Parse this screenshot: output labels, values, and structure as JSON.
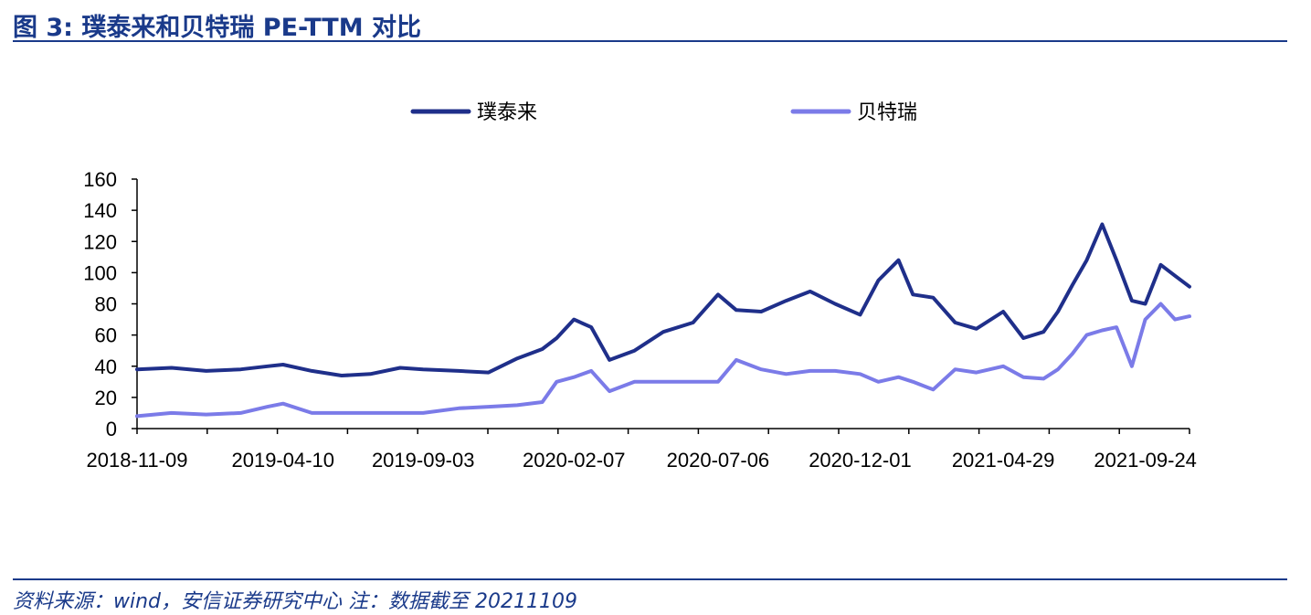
{
  "header": {
    "title": "图 3:  璞泰来和贝特瑞 PE-TTM 对比"
  },
  "footer": {
    "source": "资料来源：wind，安信证券研究中心   注：数据截至 20211109"
  },
  "colors": {
    "series1": "#1f2f8a",
    "series2": "#7b7be8",
    "rule": "#1a3a8a"
  },
  "chart_data": {
    "type": "line",
    "title": "",
    "xlabel": "",
    "ylabel": "",
    "ylim": [
      0,
      160
    ],
    "yticks": [
      "0",
      "20",
      "40",
      "60",
      "80",
      "100",
      "120",
      "140",
      "160"
    ],
    "xticks": [
      "2018-11-09",
      "2019-04-10",
      "2019-09-03",
      "2020-02-07",
      "2020-07-06",
      "2020-12-01",
      "2021-04-29",
      "2021-09-24"
    ],
    "xrange": [
      "2018-11-09",
      "2021-11-09"
    ],
    "grid": false,
    "legend": "top",
    "series": [
      {
        "name": "璞泰来",
        "x": [
          "2018-11-09",
          "2018-12-15",
          "2019-01-20",
          "2019-02-25",
          "2019-03-25",
          "2019-04-10",
          "2019-05-10",
          "2019-06-10",
          "2019-07-10",
          "2019-08-10",
          "2019-09-03",
          "2019-10-10",
          "2019-11-10",
          "2019-12-10",
          "2020-01-05",
          "2020-01-20",
          "2020-02-07",
          "2020-02-25",
          "2020-03-15",
          "2020-04-10",
          "2020-05-10",
          "2020-06-10",
          "2020-07-06",
          "2020-07-25",
          "2020-08-20",
          "2020-09-15",
          "2020-10-10",
          "2020-11-05",
          "2020-12-01",
          "2020-12-20",
          "2021-01-10",
          "2021-01-25",
          "2021-02-15",
          "2021-03-10",
          "2021-04-01",
          "2021-04-29",
          "2021-05-20",
          "2021-06-10",
          "2021-06-25",
          "2021-07-10",
          "2021-07-25",
          "2021-08-10",
          "2021-08-25",
          "2021-09-10",
          "2021-09-24",
          "2021-10-10",
          "2021-10-25",
          "2021-11-09"
        ],
        "y": [
          38,
          39,
          37,
          38,
          40,
          41,
          37,
          34,
          35,
          39,
          38,
          37,
          36,
          45,
          51,
          58,
          70,
          65,
          44,
          50,
          62,
          68,
          86,
          76,
          75,
          82,
          88,
          80,
          73,
          95,
          108,
          86,
          84,
          68,
          64,
          75,
          58,
          62,
          75,
          92,
          108,
          131,
          108,
          82,
          80,
          105,
          98,
          91
        ]
      },
      {
        "name": "贝特瑞",
        "x": [
          "2018-11-09",
          "2018-12-15",
          "2019-01-20",
          "2019-02-25",
          "2019-03-25",
          "2019-04-10",
          "2019-05-10",
          "2019-06-10",
          "2019-07-10",
          "2019-08-10",
          "2019-09-03",
          "2019-10-10",
          "2019-11-10",
          "2019-12-10",
          "2020-01-05",
          "2020-01-20",
          "2020-02-07",
          "2020-02-25",
          "2020-03-15",
          "2020-04-10",
          "2020-05-10",
          "2020-06-10",
          "2020-07-06",
          "2020-07-25",
          "2020-08-20",
          "2020-09-15",
          "2020-10-10",
          "2020-11-05",
          "2020-12-01",
          "2020-12-20",
          "2021-01-10",
          "2021-01-25",
          "2021-02-15",
          "2021-03-10",
          "2021-04-01",
          "2021-04-29",
          "2021-05-20",
          "2021-06-10",
          "2021-06-25",
          "2021-07-10",
          "2021-07-25",
          "2021-08-10",
          "2021-08-25",
          "2021-09-10",
          "2021-09-24",
          "2021-10-10",
          "2021-10-25",
          "2021-11-09"
        ],
        "y": [
          8,
          10,
          9,
          10,
          14,
          16,
          10,
          10,
          10,
          10,
          10,
          13,
          14,
          15,
          17,
          30,
          33,
          37,
          24,
          30,
          30,
          30,
          30,
          44,
          38,
          35,
          37,
          37,
          35,
          30,
          33,
          30,
          25,
          38,
          36,
          40,
          33,
          32,
          38,
          48,
          60,
          63,
          65,
          40,
          70,
          80,
          70,
          72
        ]
      }
    ]
  }
}
